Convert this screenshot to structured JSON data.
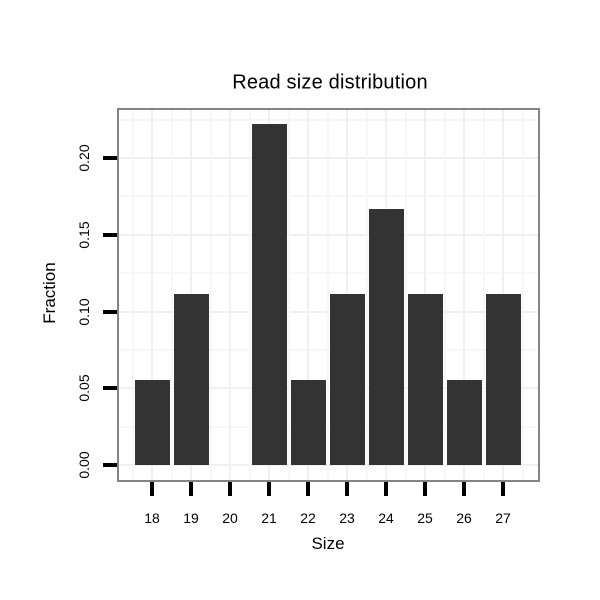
{
  "chart_data": {
    "type": "bar",
    "title": "Read size distribution",
    "xlabel": "Size",
    "ylabel": "Fraction",
    "categories": [
      "18",
      "19",
      "20",
      "21",
      "22",
      "23",
      "24",
      "25",
      "26",
      "27"
    ],
    "values": [
      0.0556,
      0.1111,
      0,
      0.2222,
      0.0556,
      0.1111,
      0.1667,
      0.1111,
      0.0556,
      0.1111
    ],
    "y_ticks": [
      "0.00",
      "0.05",
      "0.10",
      "0.15",
      "0.20"
    ],
    "ylim": [
      -0.011,
      0.233
    ],
    "grid": "major and minor gridlines, very light gray, on white panel",
    "legend": "none",
    "colors": {
      "bar": "#333333",
      "panel_border": "#848484",
      "grid_major": "#f0f0f0",
      "grid_minor": "#f7f7f7",
      "text": "#000000",
      "tick": "#000000",
      "background": "#ffffff"
    }
  }
}
